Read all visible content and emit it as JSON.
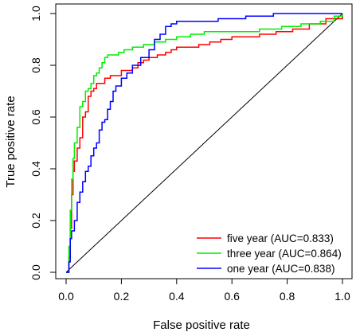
{
  "chart_data": {
    "type": "line",
    "xlabel": "False positive rate",
    "ylabel": "True positive rate",
    "xlim": [
      0,
      1
    ],
    "ylim": [
      0,
      1
    ],
    "xticks": [
      "0.0",
      "0.2",
      "0.4",
      "0.6",
      "0.8",
      "1.0"
    ],
    "yticks": [
      "0.0",
      "0.2",
      "0.4",
      "0.6",
      "0.8",
      "1.0"
    ],
    "grid": false,
    "legend_position": "bottom-right",
    "reference_line": {
      "x": [
        0,
        1
      ],
      "y": [
        0,
        1
      ],
      "color": "#000000"
    },
    "series": [
      {
        "name": "five year (AUC=0.833)",
        "color": "#ff0000",
        "x": [
          0,
          0.01,
          0.015,
          0.02,
          0.025,
          0.03,
          0.04,
          0.05,
          0.06,
          0.07,
          0.08,
          0.09,
          0.1,
          0.11,
          0.12,
          0.13,
          0.14,
          0.15,
          0.16,
          0.18,
          0.2,
          0.22,
          0.24,
          0.26,
          0.28,
          0.3,
          0.33,
          0.36,
          0.38,
          0.4,
          0.44,
          0.48,
          0.52,
          0.56,
          0.6,
          0.64,
          0.7,
          0.76,
          0.82,
          0.88,
          0.94,
          1.0
        ],
        "y": [
          0,
          0.06,
          0.17,
          0.3,
          0.39,
          0.43,
          0.48,
          0.52,
          0.6,
          0.62,
          0.68,
          0.7,
          0.71,
          0.73,
          0.73,
          0.73,
          0.75,
          0.75,
          0.76,
          0.76,
          0.78,
          0.78,
          0.79,
          0.81,
          0.82,
          0.83,
          0.84,
          0.85,
          0.86,
          0.87,
          0.87,
          0.88,
          0.89,
          0.9,
          0.91,
          0.91,
          0.92,
          0.93,
          0.94,
          0.96,
          0.98,
          1.0
        ]
      },
      {
        "name": "three year (AUC=0.864)",
        "color": "#00ee00",
        "x": [
          0,
          0.01,
          0.015,
          0.02,
          0.025,
          0.03,
          0.04,
          0.05,
          0.06,
          0.07,
          0.08,
          0.09,
          0.1,
          0.11,
          0.12,
          0.13,
          0.14,
          0.15,
          0.17,
          0.19,
          0.21,
          0.24,
          0.28,
          0.32,
          0.36,
          0.4,
          0.45,
          0.5,
          0.56,
          0.62,
          0.7,
          0.78,
          0.85,
          0.92,
          0.97,
          1.0
        ],
        "y": [
          0,
          0.1,
          0.24,
          0.36,
          0.44,
          0.5,
          0.56,
          0.64,
          0.66,
          0.7,
          0.71,
          0.73,
          0.76,
          0.77,
          0.79,
          0.81,
          0.83,
          0.84,
          0.84,
          0.85,
          0.86,
          0.87,
          0.88,
          0.89,
          0.9,
          0.91,
          0.92,
          0.93,
          0.93,
          0.93,
          0.94,
          0.95,
          0.96,
          0.97,
          0.99,
          1.0
        ]
      },
      {
        "name": "one year (AUC=0.838)",
        "color": "#0000ff",
        "x": [
          0,
          0.01,
          0.015,
          0.02,
          0.03,
          0.04,
          0.05,
          0.06,
          0.07,
          0.08,
          0.09,
          0.1,
          0.11,
          0.12,
          0.13,
          0.14,
          0.15,
          0.16,
          0.17,
          0.18,
          0.2,
          0.22,
          0.24,
          0.27,
          0.3,
          0.32,
          0.34,
          0.36,
          0.38,
          0.4,
          0.45,
          0.5,
          0.55,
          0.6,
          0.65,
          0.7,
          0.75,
          0.8,
          0.9,
          1.0
        ],
        "y": [
          0,
          0.04,
          0.13,
          0.16,
          0.2,
          0.27,
          0.31,
          0.35,
          0.39,
          0.41,
          0.45,
          0.48,
          0.5,
          0.55,
          0.58,
          0.59,
          0.63,
          0.66,
          0.7,
          0.72,
          0.75,
          0.77,
          0.8,
          0.83,
          0.86,
          0.9,
          0.92,
          0.95,
          0.96,
          0.97,
          0.97,
          0.97,
          0.98,
          0.98,
          0.99,
          0.99,
          1.0,
          1.0,
          1.0,
          1.0
        ]
      }
    ]
  }
}
